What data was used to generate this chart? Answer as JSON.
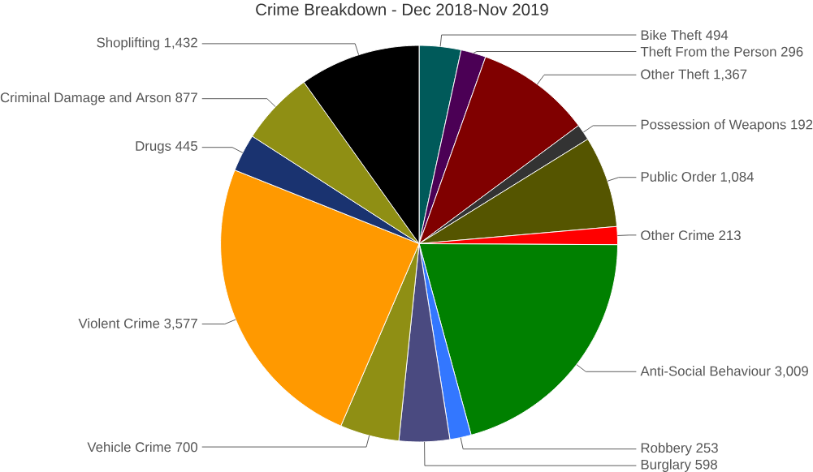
{
  "chart_data": {
    "type": "pie",
    "title": "Crime Breakdown - Dec 2018-Nov 2019",
    "categories": [
      "Bike Theft",
      "Theft From the Person",
      "Other Theft",
      "Possession of Weapons",
      "Public Order",
      "Other Crime",
      "Anti-Social Behaviour",
      "Robbery",
      "Burglary",
      "Vehicle Crime",
      "Violent Crime",
      "Drugs",
      "Criminal Damage and Arson",
      "Shoplifting"
    ],
    "values": [
      494,
      296,
      1367,
      192,
      1084,
      213,
      3009,
      253,
      598,
      700,
      3577,
      445,
      877,
      1432
    ],
    "value_labels": [
      "494",
      "296",
      "1,367",
      "192",
      "1,084",
      "213",
      "3,009",
      "253",
      "598",
      "700",
      "3,577",
      "445",
      "877",
      "1,432"
    ],
    "colors": [
      "#005a5a",
      "#4b0055",
      "#800000",
      "#333333",
      "#555500",
      "#ff0000",
      "#008000",
      "#3377ff",
      "#4a4a80",
      "#8f8f14",
      "#ff9900",
      "#1a3370",
      "#8f8f14",
      "#000000"
    ]
  }
}
